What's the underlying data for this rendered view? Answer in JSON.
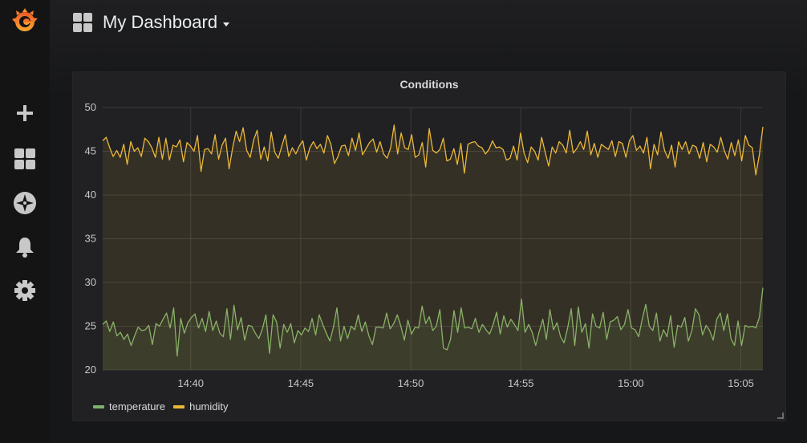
{
  "sidebar": {
    "items": [
      {
        "name": "grafana-logo",
        "icon": "grafana-logo"
      },
      {
        "name": "create",
        "icon": "plus-icon"
      },
      {
        "name": "dashboards",
        "icon": "grid-icon"
      },
      {
        "name": "explore",
        "icon": "compass-icon"
      },
      {
        "name": "alerting",
        "icon": "bell-icon"
      },
      {
        "name": "configuration",
        "icon": "gear-icon"
      }
    ]
  },
  "header": {
    "title": "My Dashboard",
    "icon": "grid-icon"
  },
  "panel": {
    "title": "Conditions"
  },
  "chart_data": {
    "type": "line",
    "ylim": [
      20,
      50
    ],
    "yticks": [
      "20",
      "25",
      "30",
      "35",
      "40",
      "45",
      "50"
    ],
    "xticks": [
      "14:40",
      "14:45",
      "14:50",
      "14:55",
      "15:00",
      "15:05"
    ],
    "xrange_minutes": [
      "14:36",
      "15:06"
    ],
    "grid": true,
    "legend_position": "bottom-left",
    "series": [
      {
        "name": "temperature",
        "color": "#7eb26d",
        "values": [
          25.2,
          25.6,
          24.4,
          25.5,
          23.9,
          24.3,
          23.5,
          24.1,
          22.8,
          23.9,
          24.9,
          24.5,
          24.6,
          25.1,
          22.9,
          25.3,
          25.0,
          25.8,
          26.5,
          24.8,
          27.1,
          21.6,
          25.9,
          24.2,
          25.4,
          26.0,
          26.4,
          24.8,
          25.9,
          24.4,
          26.7,
          24.5,
          25.6,
          24.2,
          23.8,
          27.0,
          23.5,
          27.4,
          24.6,
          26.0,
          23.4,
          25.1,
          25.0,
          24.2,
          23.6,
          24.7,
          26.3,
          21.9,
          26.3,
          25.5,
          22.5,
          25.2,
          24.3,
          25.3,
          23.1,
          24.5,
          24.0,
          24.8,
          24.4,
          25.9,
          24.0,
          26.3,
          25.2,
          24.2,
          23.3,
          24.9,
          27.1,
          23.3,
          25.0,
          23.6,
          25.0,
          24.6,
          26.3,
          24.4,
          25.5,
          23.9,
          22.9,
          24.9,
          24.9,
          24.8,
          26.5,
          24.7,
          25.3,
          26.3,
          25.0,
          23.4,
          25.7,
          24.1,
          24.9,
          24.8,
          27.3,
          25.3,
          26.1,
          24.5,
          25.0,
          26.9,
          22.5,
          22.3,
          23.5,
          26.8,
          24.3,
          27.1,
          24.8,
          24.9,
          24.7,
          25.9,
          24.3,
          25.2,
          24.6,
          24.1,
          25.2,
          26.6,
          24.1,
          26.2,
          24.9,
          25.8,
          25.2,
          24.5,
          28.1,
          24.3,
          25.2,
          24.3,
          22.8,
          24.4,
          25.8,
          23.5,
          26.9,
          24.6,
          25.4,
          23.8,
          23.1,
          24.8,
          27.0,
          22.8,
          27.2,
          24.3,
          25.3,
          22.5,
          26.4,
          25.0,
          24.8,
          26.6,
          23.5,
          25.5,
          25.7,
          26.1,
          24.6,
          25.2,
          26.9,
          24.8,
          24.6,
          23.8,
          25.8,
          27.5,
          25.0,
          24.5,
          26.5,
          23.3,
          24.6,
          23.8,
          26.2,
          22.6,
          25.1,
          24.9,
          26.0,
          23.3,
          24.5,
          27.0,
          26.3,
          24.0,
          25.1,
          24.5,
          23.4,
          25.8,
          26.5,
          24.5,
          26.4,
          23.6,
          22.8,
          25.6,
          22.8,
          25.1,
          24.9,
          25.0,
          24.8,
          26.0,
          29.4
        ],
        "fill": true
      },
      {
        "name": "humidity",
        "color": "#eab839",
        "values": [
          46.2,
          46.6,
          45.4,
          44.4,
          45.1,
          44.3,
          45.8,
          43.5,
          46.1,
          45.0,
          45.4,
          44.4,
          46.5,
          46.1,
          45.4,
          44.3,
          46.6,
          44.1,
          46.5,
          44.0,
          45.7,
          45.5,
          46.3,
          43.8,
          46.0,
          45.6,
          45.0,
          46.8,
          42.7,
          45.2,
          45.3,
          44.7,
          46.9,
          44.1,
          45.7,
          46.5,
          43.0,
          45.4,
          47.3,
          46.1,
          47.7,
          45.1,
          44.3,
          46.3,
          47.4,
          44.1,
          45.5,
          43.9,
          47.2,
          44.9,
          44.2,
          45.6,
          46.9,
          44.4,
          45.4,
          44.7,
          45.6,
          46.2,
          44.0,
          45.4,
          46.1,
          45.3,
          45.8,
          44.8,
          46.8,
          45.8,
          43.6,
          44.4,
          45.6,
          45.7,
          44.5,
          46.5,
          45.1,
          47.1,
          44.6,
          45.3,
          46.0,
          46.4,
          44.9,
          46.1,
          44.7,
          44.2,
          45.4,
          48.0,
          44.7,
          47.1,
          45.4,
          45.2,
          46.9,
          44.3,
          44.6,
          46.0,
          43.2,
          47.6,
          45.1,
          44.8,
          45.2,
          46.5,
          43.9,
          44.1,
          45.3,
          43.5,
          45.9,
          42.5,
          45.8,
          46.0,
          46.1,
          45.6,
          45.4,
          44.7,
          45.2,
          46.2,
          45.4,
          45.5,
          45.2,
          44.0,
          44.2,
          45.6,
          44.0,
          47.1,
          44.8,
          43.7,
          45.5,
          45.0,
          44.0,
          46.6,
          44.9,
          43.3,
          45.5,
          44.8,
          46.1,
          45.7,
          44.8,
          47.4,
          44.8,
          45.3,
          46.1,
          45.2,
          47.3,
          44.6,
          45.9,
          44.3,
          45.8,
          45.5,
          45.2,
          46.2,
          44.4,
          46.1,
          45.9,
          44.3,
          46.2,
          46.8,
          45.1,
          45.6,
          44.8,
          46.6,
          43.0,
          45.8,
          44.6,
          47.2,
          45.1,
          44.2,
          45.7,
          43.2,
          46.1,
          45.2,
          46.1,
          44.7,
          45.7,
          45.5,
          44.2,
          46.0,
          43.8,
          45.8,
          45.5,
          44.9,
          46.6,
          45.1,
          44.1,
          46.0,
          44.5,
          46.3,
          43.9,
          46.8,
          45.7,
          45.4,
          42.3,
          44.6,
          47.8
        ],
        "fill": true
      }
    ]
  }
}
